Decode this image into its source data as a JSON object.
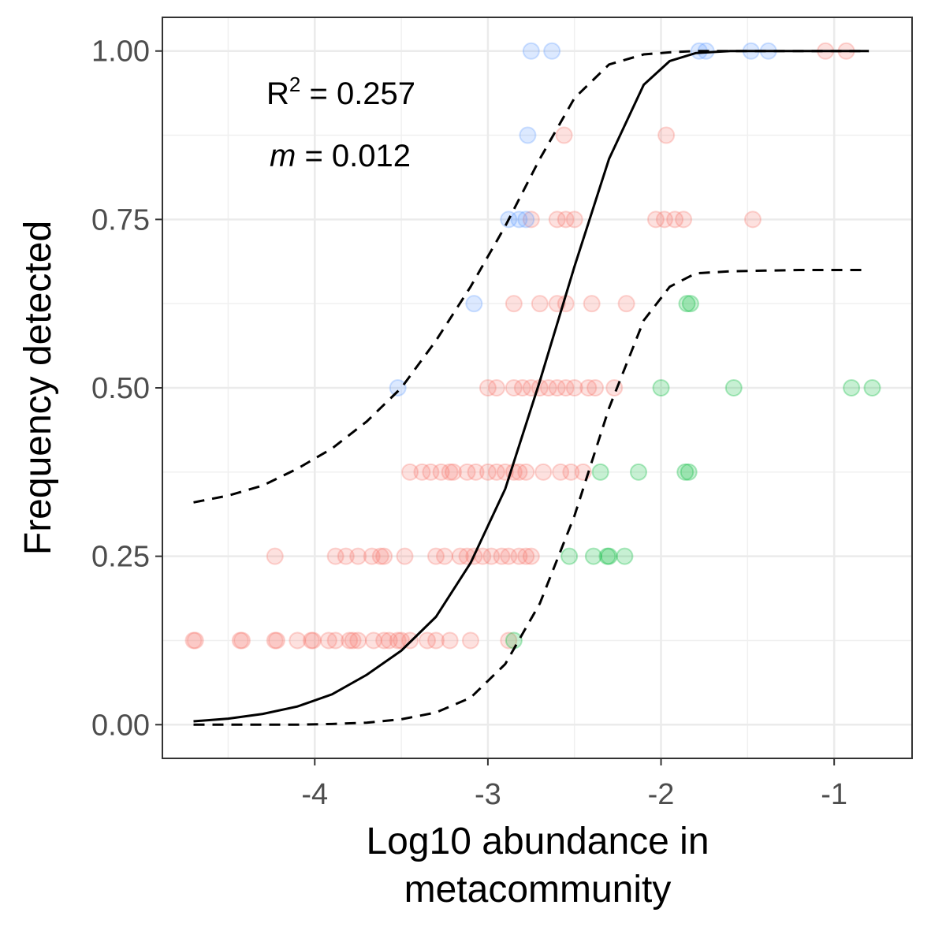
{
  "chart_data": {
    "type": "scatter",
    "title": "",
    "xlabel_lines": [
      "Log10 abundance in",
      "metacommunity"
    ],
    "ylabel": "Frequency detected",
    "xlim": [
      -4.88,
      -0.55
    ],
    "ylim": [
      -0.05,
      1.05
    ],
    "x_ticks": [
      -4,
      -3,
      -2,
      -1
    ],
    "x_tick_labels": [
      "-4",
      "-3",
      "-2",
      "-1"
    ],
    "y_ticks": [
      0,
      0.25,
      0.5,
      0.75,
      1.0
    ],
    "y_tick_labels": [
      "0.00",
      "0.25",
      "0.50",
      "0.75",
      "1.00"
    ],
    "grid": true,
    "annotations": {
      "r2_label": "R",
      "r2_sup": "2",
      "r2_value": " = 0.257",
      "m_label": "m",
      "m_value": " = 0.012"
    },
    "colors": {
      "below": "#f8766d",
      "above": "#619cff",
      "within": "#00ba38",
      "fit": "#000000"
    },
    "fit_curve": {
      "x": [
        -4.7,
        -4.5,
        -4.3,
        -4.1,
        -3.9,
        -3.7,
        -3.5,
        -3.3,
        -3.1,
        -2.9,
        -2.7,
        -2.5,
        -2.3,
        -2.1,
        -1.95,
        -1.8,
        -1.6,
        -1.4,
        -1.2,
        -1.0,
        -0.8
      ],
      "y": [
        0.005,
        0.009,
        0.016,
        0.027,
        0.045,
        0.074,
        0.11,
        0.16,
        0.24,
        0.35,
        0.51,
        0.68,
        0.84,
        0.95,
        0.985,
        0.997,
        1.0,
        1.0,
        1.0,
        1.0,
        1.0
      ]
    },
    "upper_ci": {
      "x": [
        -4.7,
        -4.5,
        -4.3,
        -4.1,
        -3.9,
        -3.7,
        -3.5,
        -3.3,
        -3.1,
        -2.9,
        -2.7,
        -2.5,
        -2.3,
        -2.1,
        -1.95,
        -1.8,
        -1.6,
        -1.4,
        -1.2,
        -1.0,
        -0.8
      ],
      "y": [
        0.33,
        0.34,
        0.355,
        0.38,
        0.41,
        0.45,
        0.5,
        0.57,
        0.65,
        0.74,
        0.84,
        0.93,
        0.98,
        0.995,
        0.998,
        1.0,
        1.0,
        1.0,
        1.0,
        1.0,
        1.0
      ]
    },
    "lower_ci": {
      "x": [
        -4.7,
        -4.5,
        -4.3,
        -4.1,
        -3.9,
        -3.7,
        -3.5,
        -3.3,
        -3.1,
        -2.9,
        -2.7,
        -2.5,
        -2.3,
        -2.1,
        -1.95,
        -1.8,
        -1.6,
        -1.4,
        -1.2,
        -1.0,
        -0.8
      ],
      "y": [
        0.0,
        0.0,
        0.0,
        0.0,
        0.001,
        0.003,
        0.008,
        0.018,
        0.04,
        0.09,
        0.18,
        0.31,
        0.47,
        0.6,
        0.65,
        0.67,
        0.673,
        0.674,
        0.675,
        0.675,
        0.675
      ]
    },
    "series": [
      {
        "group": "below",
        "points": [
          [
            -4.7,
            0.125
          ],
          [
            -4.69,
            0.125
          ],
          [
            -4.43,
            0.125
          ],
          [
            -4.42,
            0.125
          ],
          [
            -4.23,
            0.125
          ],
          [
            -4.22,
            0.125
          ],
          [
            -4.1,
            0.125
          ],
          [
            -4.02,
            0.125
          ],
          [
            -4.01,
            0.125
          ],
          [
            -3.92,
            0.125
          ],
          [
            -3.88,
            0.125
          ],
          [
            -3.8,
            0.125
          ],
          [
            -3.78,
            0.125
          ],
          [
            -3.75,
            0.125
          ],
          [
            -3.66,
            0.125
          ],
          [
            -3.6,
            0.125
          ],
          [
            -3.57,
            0.125
          ],
          [
            -3.52,
            0.125
          ],
          [
            -3.5,
            0.125
          ],
          [
            -3.45,
            0.125
          ],
          [
            -3.35,
            0.125
          ],
          [
            -3.3,
            0.125
          ],
          [
            -3.22,
            0.125
          ],
          [
            -3.1,
            0.125
          ],
          [
            -2.88,
            0.125
          ],
          [
            -4.23,
            0.25
          ],
          [
            -3.88,
            0.25
          ],
          [
            -3.82,
            0.25
          ],
          [
            -3.75,
            0.25
          ],
          [
            -3.67,
            0.25
          ],
          [
            -3.62,
            0.25
          ],
          [
            -3.6,
            0.25
          ],
          [
            -3.48,
            0.25
          ],
          [
            -3.3,
            0.25
          ],
          [
            -3.25,
            0.25
          ],
          [
            -3.16,
            0.25
          ],
          [
            -3.12,
            0.25
          ],
          [
            -3.08,
            0.25
          ],
          [
            -3.03,
            0.25
          ],
          [
            -2.98,
            0.25
          ],
          [
            -2.92,
            0.25
          ],
          [
            -2.88,
            0.25
          ],
          [
            -2.82,
            0.25
          ],
          [
            -2.78,
            0.25
          ],
          [
            -2.75,
            0.25
          ],
          [
            -3.45,
            0.375
          ],
          [
            -3.38,
            0.375
          ],
          [
            -3.33,
            0.375
          ],
          [
            -3.27,
            0.375
          ],
          [
            -3.22,
            0.375
          ],
          [
            -3.2,
            0.375
          ],
          [
            -3.12,
            0.375
          ],
          [
            -3.07,
            0.375
          ],
          [
            -3.0,
            0.375
          ],
          [
            -2.95,
            0.375
          ],
          [
            -2.9,
            0.375
          ],
          [
            -2.85,
            0.375
          ],
          [
            -2.82,
            0.375
          ],
          [
            -2.78,
            0.375
          ],
          [
            -2.68,
            0.375
          ],
          [
            -2.58,
            0.375
          ],
          [
            -2.52,
            0.375
          ],
          [
            -2.45,
            0.375
          ],
          [
            -3.0,
            0.5
          ],
          [
            -2.95,
            0.5
          ],
          [
            -2.85,
            0.5
          ],
          [
            -2.8,
            0.5
          ],
          [
            -2.75,
            0.5
          ],
          [
            -2.7,
            0.5
          ],
          [
            -2.65,
            0.5
          ],
          [
            -2.6,
            0.5
          ],
          [
            -2.55,
            0.5
          ],
          [
            -2.5,
            0.5
          ],
          [
            -2.42,
            0.5
          ],
          [
            -2.38,
            0.5
          ],
          [
            -2.27,
            0.5
          ],
          [
            -2.85,
            0.625
          ],
          [
            -2.7,
            0.625
          ],
          [
            -2.6,
            0.625
          ],
          [
            -2.55,
            0.625
          ],
          [
            -2.4,
            0.625
          ],
          [
            -2.2,
            0.625
          ],
          [
            -2.75,
            0.75
          ],
          [
            -2.6,
            0.75
          ],
          [
            -2.55,
            0.75
          ],
          [
            -2.5,
            0.75
          ],
          [
            -2.03,
            0.75
          ],
          [
            -1.98,
            0.75
          ],
          [
            -1.92,
            0.75
          ],
          [
            -1.87,
            0.75
          ],
          [
            -1.47,
            0.75
          ],
          [
            -2.56,
            0.875
          ],
          [
            -1.97,
            0.875
          ],
          [
            -1.05,
            1.0
          ],
          [
            -0.93,
            1.0
          ]
        ]
      },
      {
        "group": "above",
        "points": [
          [
            -3.52,
            0.5
          ],
          [
            -3.08,
            0.625
          ],
          [
            -2.88,
            0.75
          ],
          [
            -2.82,
            0.75
          ],
          [
            -2.78,
            0.75
          ],
          [
            -2.77,
            0.875
          ],
          [
            -2.75,
            1.0
          ],
          [
            -2.63,
            1.0
          ],
          [
            -1.78,
            1.0
          ],
          [
            -1.74,
            1.0
          ],
          [
            -1.48,
            1.0
          ],
          [
            -1.38,
            1.0
          ]
        ]
      },
      {
        "group": "within",
        "points": [
          [
            -2.85,
            0.125
          ],
          [
            -2.53,
            0.25
          ],
          [
            -2.39,
            0.25
          ],
          [
            -2.31,
            0.25
          ],
          [
            -2.3,
            0.25
          ],
          [
            -2.21,
            0.25
          ],
          [
            -2.35,
            0.375
          ],
          [
            -2.13,
            0.375
          ],
          [
            -1.86,
            0.375
          ],
          [
            -1.84,
            0.375
          ],
          [
            -2.0,
            0.5
          ],
          [
            -1.58,
            0.5
          ],
          [
            -0.9,
            0.5
          ],
          [
            -0.78,
            0.5
          ],
          [
            -1.85,
            0.625
          ],
          [
            -1.83,
            0.625
          ]
        ]
      }
    ]
  }
}
